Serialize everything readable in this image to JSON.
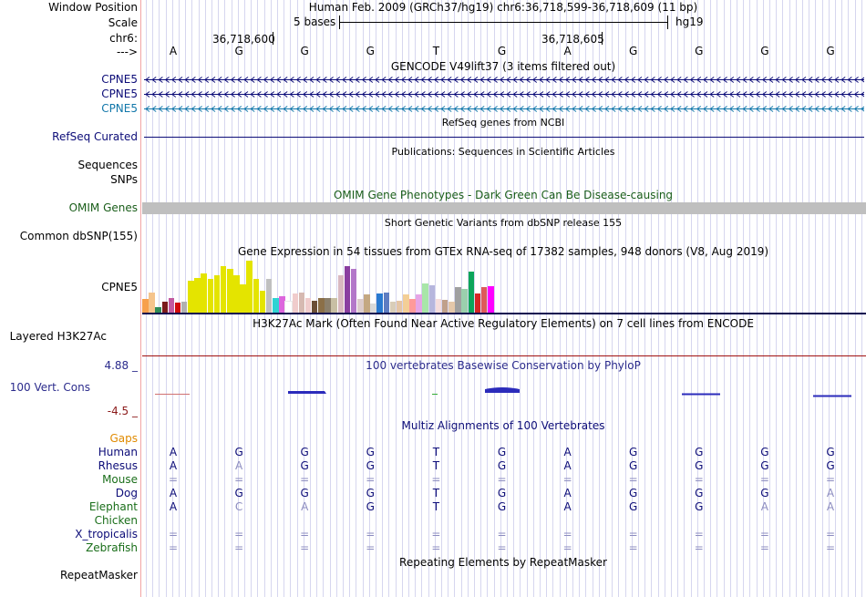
{
  "header": {
    "window_position_label": "Window Position",
    "window_position": "Human Feb. 2009 (GRCh37/hg19)   chr6:36,718,599-36,718,609 (11 bp)",
    "scale_label": "Scale",
    "scale_text": "5 bases",
    "scale_assembly": "hg19",
    "chrom_label": "chr6:",
    "pos_1": "36,718,600",
    "pos_2": "36,718,605",
    "strand_label": "--->"
  },
  "dna": [
    "A",
    "G",
    "G",
    "G",
    "T",
    "G",
    "A",
    "G",
    "G",
    "G",
    "G"
  ],
  "gencode": {
    "title": "GENCODE V49lift37 (3 items filtered out)",
    "items": [
      {
        "label": "CPNE5",
        "color": "#0c0c78"
      },
      {
        "label": "CPNE5",
        "color": "#0c0c78"
      },
      {
        "label": "CPNE5",
        "color": "#1177aa"
      }
    ]
  },
  "refseq": {
    "title": "RefSeq genes from NCBI",
    "label": "RefSeq Curated",
    "color": "#0c0c78"
  },
  "publications": {
    "title": "Publications: Sequences in Scientific Articles",
    "label_1": "Sequences",
    "label_2": "SNPs"
  },
  "omim": {
    "title": "OMIM Gene Phenotypes - Dark Green Can Be Disease-causing",
    "label": "OMIM Genes",
    "color": "#1a5e1a"
  },
  "dbsnp": {
    "title": "Short Genetic Variants from dbSNP release 155",
    "label": "Common dbSNP(155)"
  },
  "gtex": {
    "title": "Gene Expression in 54 tissues from GTEx RNA-seq of 17382 samples, 948 donors (V8, Aug 2019)",
    "label": "CPNE5",
    "chart_data": {
      "type": "bar",
      "title": "Gene Expression in 54 tissues from GTEx RNA-seq",
      "ylim": [
        0,
        60
      ],
      "values": [
        15,
        22,
        6,
        12,
        16,
        11,
        12,
        36,
        39,
        44,
        38,
        42,
        52,
        49,
        42,
        32,
        58,
        38,
        24,
        38,
        16,
        18,
        12,
        21,
        22,
        16,
        13,
        16,
        16,
        16,
        42,
        52,
        49,
        15,
        20,
        10,
        21,
        22,
        12,
        13,
        20,
        15,
        20,
        33,
        30,
        15,
        14,
        12,
        28,
        26,
        46,
        21,
        28,
        29
      ],
      "colors": [
        "#f7a04c",
        "#f5c48c",
        "#2e8b57",
        "#7b1b1b",
        "#c25aa0",
        "#d10a0a",
        "#b0b0b0",
        "#e4e400",
        "#e4e400",
        "#e4e400",
        "#e4e400",
        "#e4e400",
        "#e4e400",
        "#e4e400",
        "#e4e400",
        "#e4e400",
        "#e4e400",
        "#e4e400",
        "#e4e400",
        "#c0c0c0",
        "#2ed3d3",
        "#dd66dd",
        "#ffffff",
        "#f0cccc",
        "#d6b9b1",
        "#f0cccc",
        "#6b4e36",
        "#8b6f47",
        "#8b7f6b",
        "#c8bfa4",
        "#d9b8c0",
        "#8a3ea0",
        "#b377c9",
        "#dccccc",
        "#c4a882",
        "#d9d9d9",
        "#2a7ad0",
        "#5e7dc2",
        "#d9cdb8",
        "#e5c5a5",
        "#f3ce96",
        "#ff9a9a",
        "#e6a5e6",
        "#a8e6a8",
        "#b6b6dd",
        "#f5dddd",
        "#c0a08a",
        "#e5c8aa",
        "#a0a0a0",
        "#9ad0ad",
        "#0ca55a",
        "#d62525",
        "#de5a5a",
        "#ff00ff"
      ]
    }
  },
  "h3k27ac": {
    "title": "H3K27Ac Mark (Often Found Near Active Regulatory Elements) on 7 cell lines from ENCODE",
    "label": "Layered H3K27Ac"
  },
  "phylop": {
    "title": "100 vertebrates Basewise Conservation by PhyloP",
    "label": "100 Vert. Cons",
    "max": "4.88 _",
    "min": "-4.5 _"
  },
  "multiz": {
    "title": "Multiz Alignments of 100 Vertebrates",
    "gaps_label": "Gaps",
    "species": [
      {
        "name": "Human",
        "color": "#0c0c78",
        "bases": [
          "A",
          "G",
          "G",
          "G",
          "T",
          "G",
          "A",
          "G",
          "G",
          "G",
          "G"
        ],
        "faint": []
      },
      {
        "name": "Rhesus",
        "color": "#0c0c78",
        "bases": [
          "A",
          "A",
          "G",
          "G",
          "T",
          "G",
          "A",
          "G",
          "G",
          "G",
          "G"
        ],
        "faint": [
          1
        ]
      },
      {
        "name": "Mouse",
        "color": "#1a6e1a",
        "bases": [
          "=",
          "=",
          "=",
          "=",
          "=",
          "=",
          "=",
          "=",
          "=",
          "=",
          "="
        ],
        "faint": [
          0,
          1,
          2,
          3,
          4,
          5,
          6,
          7,
          8,
          9,
          10
        ]
      },
      {
        "name": "Dog",
        "color": "#0c0c78",
        "bases": [
          "A",
          "G",
          "G",
          "G",
          "T",
          "G",
          "A",
          "G",
          "G",
          "G",
          "A"
        ],
        "faint": [
          10
        ]
      },
      {
        "name": "Elephant",
        "color": "#1a6e1a",
        "bases": [
          "A",
          "C",
          "A",
          "G",
          "T",
          "G",
          "A",
          "G",
          "G",
          "A",
          "A"
        ],
        "faint": [
          1,
          2,
          9,
          10
        ]
      },
      {
        "name": "Chicken",
        "color": "#1a6e1a",
        "bases": [
          "",
          "",
          "",
          "",
          "",
          "",
          "",
          "",
          "",
          "",
          ""
        ],
        "faint": []
      },
      {
        "name": "X_tropicalis",
        "color": "#0c0c78",
        "bases": [
          "=",
          "=",
          "=",
          "=",
          "=",
          "=",
          "=",
          "=",
          "=",
          "=",
          "="
        ],
        "faint": [
          0,
          1,
          2,
          3,
          4,
          5,
          6,
          7,
          8,
          9,
          10
        ]
      },
      {
        "name": "Zebrafish",
        "color": "#1a6e1a",
        "bases": [
          "=",
          "=",
          "=",
          "=",
          "=",
          "=",
          "=",
          "=",
          "=",
          "=",
          "="
        ],
        "faint": [
          0,
          1,
          2,
          3,
          4,
          5,
          6,
          7,
          8,
          9,
          10
        ]
      }
    ]
  },
  "repeatmasker": {
    "title": "Repeating Elements by RepeatMasker",
    "label": "RepeatMasker"
  }
}
